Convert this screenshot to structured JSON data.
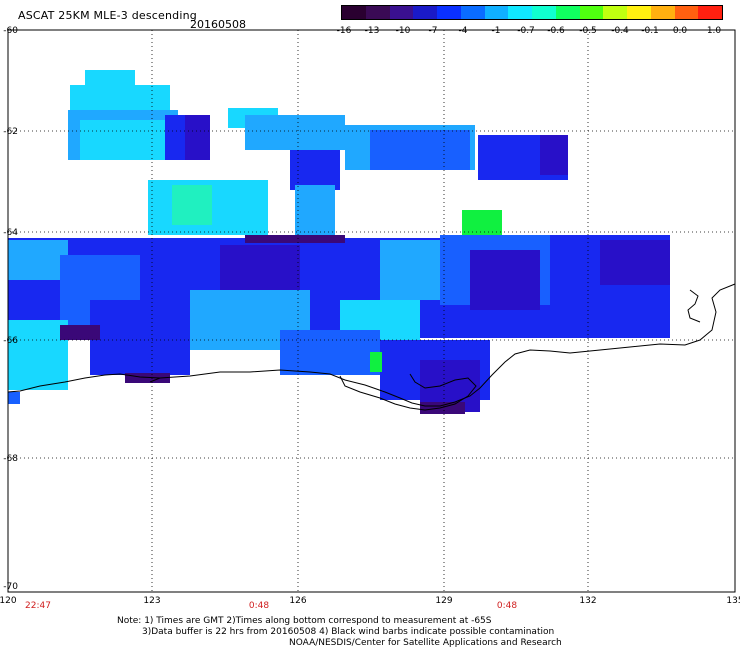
{
  "header": {
    "title": "ASCAT 25KM MLE-3 descending",
    "date": "20160508"
  },
  "colorbar": {
    "labels": [
      "-16",
      "-13",
      "-10",
      "-7",
      "-4",
      "-1",
      "-0.7",
      "-0.6",
      "-0.5",
      "-0.4",
      "-0.1",
      "0.0",
      "1.0"
    ],
    "colors": [
      "#2a0030",
      "#3a0a55",
      "#3a1090",
      "#1a1ac8",
      "#0a30ff",
      "#0a6cff",
      "#10b0ff",
      "#10e8ff",
      "#10ffd0",
      "#10ff60",
      "#50ff10",
      "#c0ff10",
      "#fff010",
      "#ffb010",
      "#ff6010",
      "#ff2010"
    ]
  },
  "axes": {
    "lat_labels": [
      "-60",
      "-62",
      "-64",
      "-66",
      "-68",
      "-70"
    ],
    "lon_labels": [
      "120",
      "123",
      "126",
      "129",
      "132",
      "135"
    ],
    "time_labels": [
      "22:47",
      "0:48",
      "0:48"
    ]
  },
  "notes": {
    "line1": "Note: 1) Times are GMT 2)Times along bottom correspond to measurement at -65S",
    "line2": "3)Data buffer is 22 hrs from 20160508 4) Black wind barbs indicate possible contamination",
    "line3": "NOAA/NESDIS/Center for Satellite Applications and Research"
  },
  "map": {
    "coastline_color": "#000000",
    "grid_color": "#000000",
    "swath_colors": {
      "cyan": "#18d8ff",
      "light_blue": "#20a8ff",
      "mid_blue": "#1860ff",
      "deep_blue": "#1828f0",
      "indigo": "#2810c8",
      "purple": "#3a0878",
      "green": "#10f040",
      "aqua": "#20f0c0"
    }
  }
}
